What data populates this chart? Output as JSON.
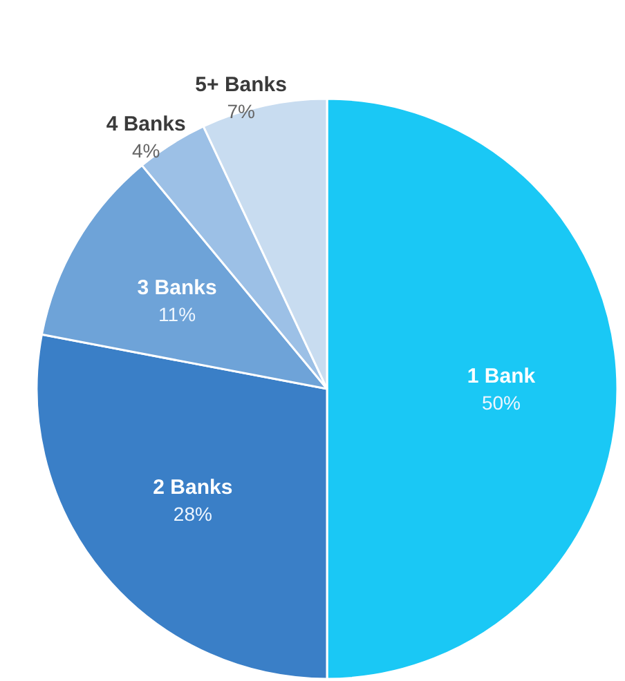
{
  "chart_data": {
    "type": "pie",
    "categories": [
      "1 Bank",
      "2 Banks",
      "3 Banks",
      "4 Banks",
      "5+ Banks"
    ],
    "values": [
      50,
      28,
      11,
      4,
      7
    ],
    "colors": [
      "#1ac8f5",
      "#3a7fc7",
      "#6ea3d8",
      "#9cc0e6",
      "#c8dcf0"
    ],
    "value_labels": [
      "50%",
      "28%",
      "11%",
      "4%",
      "7%"
    ]
  }
}
